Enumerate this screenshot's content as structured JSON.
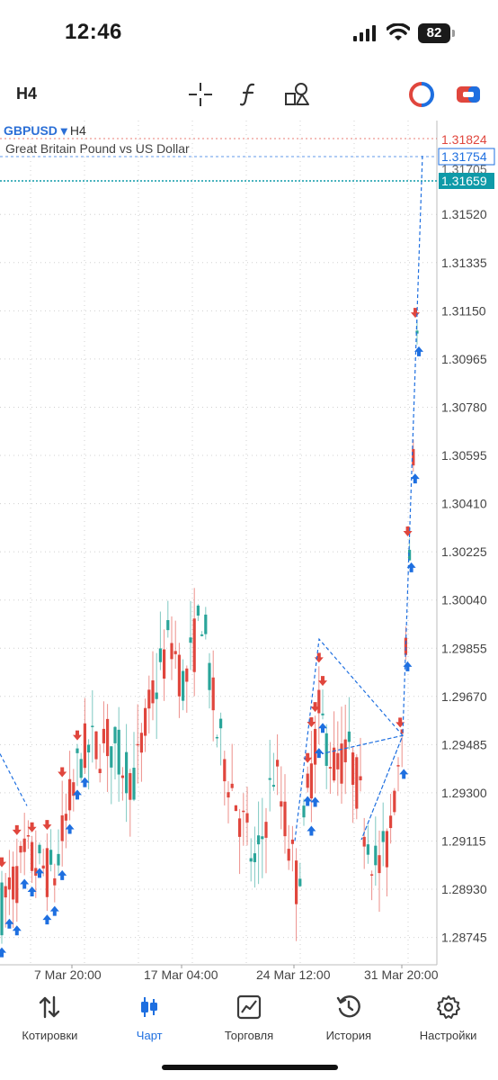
{
  "status_bar": {
    "time": "12:46",
    "battery": "82",
    "icons": [
      "cellular-signal-icon",
      "wifi-icon",
      "battery-icon"
    ]
  },
  "toolbar": {
    "timeframe": "H4",
    "icons": [
      "crosshair-icon",
      "indicators-icon",
      "objects-icon",
      "trade-icon",
      "chat-icon"
    ]
  },
  "chart": {
    "symbol": "GBPUSD",
    "timeframe": "H4",
    "description": "Great Britain Pound vs US Dollar",
    "colors": {
      "bull": "#2aa59a",
      "bear": "#e0463d",
      "arrow_up": "#1e6fe0",
      "arrow_down": "#e0463d",
      "grid": "#d0d0d0"
    }
  },
  "chart_data": {
    "type": "candlestick",
    "price_labels": [
      "1.31824",
      "1.31754",
      "1.31705",
      "1.31659",
      "1.31520",
      "1.31335",
      "1.31150",
      "1.30965",
      "1.30780",
      "1.30595",
      "1.30410",
      "1.30225",
      "1.30040",
      "1.29855",
      "1.29670",
      "1.29485",
      "1.29300",
      "1.29115",
      "1.28930",
      "1.28745"
    ],
    "price_ticks": [
      1.3152,
      1.31335,
      1.3115,
      1.30965,
      1.3078,
      1.30595,
      1.3041,
      1.30225,
      1.3004,
      1.29855,
      1.2967,
      1.29485,
      1.293,
      1.29115,
      1.2893,
      1.28745
    ],
    "time_labels": [
      "7 Mar 20:00",
      "17 Mar 04:00",
      "24 Mar 12:00",
      "31 Mar 20:00"
    ],
    "current_price": "1.31659",
    "ask_price": "1.31754",
    "high_price": "1.31824",
    "ylim": [
      1.2864,
      1.3188
    ]
  },
  "nav": {
    "items": [
      {
        "label": "Котировки",
        "icon": "quotes-icon"
      },
      {
        "label": "Чарт",
        "icon": "chart-icon",
        "active": true
      },
      {
        "label": "Торговля",
        "icon": "trade-icon"
      },
      {
        "label": "История",
        "icon": "history-icon"
      },
      {
        "label": "Настройки",
        "icon": "settings-icon"
      }
    ]
  }
}
